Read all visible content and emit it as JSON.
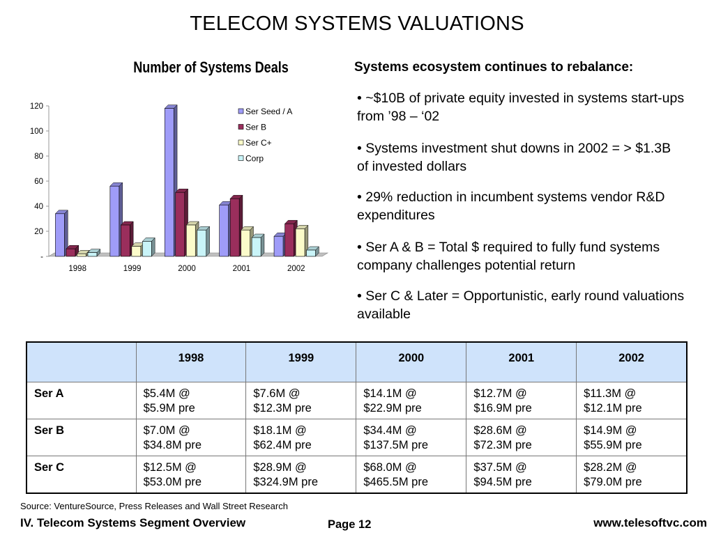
{
  "slide": {
    "title": "TELECOM SYSTEMS VALUATIONS"
  },
  "chart_data": {
    "type": "bar",
    "title": "Number of Systems Deals",
    "categories": [
      "1998",
      "1999",
      "2000",
      "2001",
      "2002"
    ],
    "series": [
      {
        "name": "Ser Seed / A",
        "values": [
          34,
          56,
          118,
          41,
          16
        ],
        "color": "#9f9cf8"
      },
      {
        "name": "Ser B",
        "values": [
          6,
          25,
          51,
          46,
          26
        ],
        "color": "#9a2e5c"
      },
      {
        "name": "Ser C+",
        "values": [
          2,
          8,
          25,
          21,
          22
        ],
        "color": "#fbfbca"
      },
      {
        "name": "Corp",
        "values": [
          3,
          12,
          21,
          15,
          5
        ],
        "color": "#c9f4f8"
      }
    ],
    "ylim": [
      0,
      120
    ],
    "yticks": [
      0,
      20,
      40,
      60,
      80,
      100,
      120
    ],
    "ytick_labels": [
      "-",
      "20",
      "40",
      "60",
      "80",
      "100",
      "120"
    ],
    "legend": "right"
  },
  "bullets": {
    "heading": "Systems ecosystem continues to rebalance:",
    "items": [
      "• ~$10B of private equity invested in systems start-ups from ’98 – ‘02",
      "• Systems investment shut downs in 2002 = > $1.3B of invested dollars",
      "• 29% reduction in incumbent systems vendor R&D expenditures",
      "• Ser A & B = Total $ required to fully fund systems company challenges potential return",
      "• Ser C & Later = Opportunistic, early round valuations available"
    ]
  },
  "table": {
    "columns": [
      "",
      "1998",
      "1999",
      "2000",
      "2001",
      "2002"
    ],
    "rows": [
      {
        "label": "Ser A",
        "cells": [
          [
            "$5.4M @",
            "$5.9M pre"
          ],
          [
            "$7.6M @",
            "$12.3M pre"
          ],
          [
            "$14.1M @",
            "$22.9M pre"
          ],
          [
            "$12.7M @",
            "$16.9M pre"
          ],
          [
            "$11.3M @",
            "$12.1M pre"
          ]
        ]
      },
      {
        "label": "Ser B",
        "cells": [
          [
            "$7.0M @",
            "$34.8M pre"
          ],
          [
            "$18.1M @",
            "$62.4M pre"
          ],
          [
            "$34.4M @",
            "$137.5M pre"
          ],
          [
            "$28.6M @",
            "$72.3M pre"
          ],
          [
            "$14.9M @",
            "$55.9M pre"
          ]
        ]
      },
      {
        "label": "Ser C",
        "cells": [
          [
            "$12.5M @",
            "$53.0M pre"
          ],
          [
            "$28.9M @",
            "$324.9M pre"
          ],
          [
            "$68.0M @",
            "$465.5M pre"
          ],
          [
            "$37.5M @",
            "$94.5M pre"
          ],
          [
            "$28.2M @",
            "$79.0M pre"
          ]
        ]
      }
    ]
  },
  "footer": {
    "source": "Source: VentureSource, Press Releases and Wall Street Research",
    "section": "IV. Telecom Systems Segment Overview",
    "page": "Page 12",
    "url": "www.telesoftvc.com"
  }
}
